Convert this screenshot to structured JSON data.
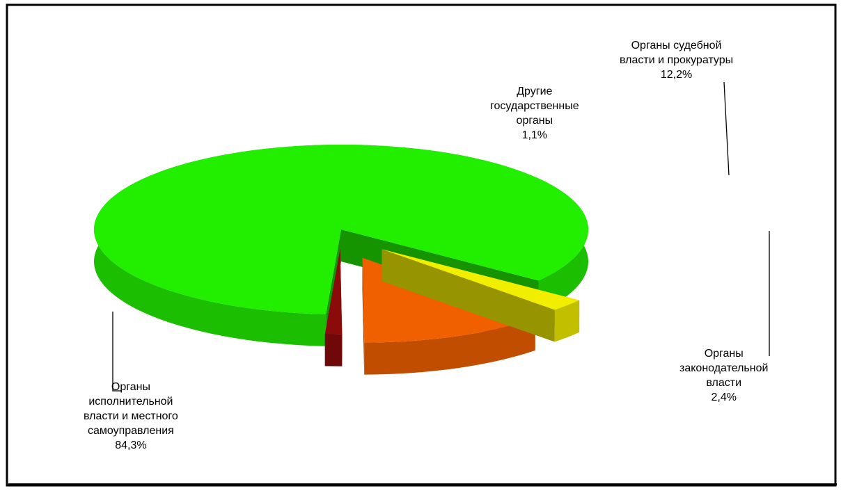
{
  "chart_data": {
    "type": "pie",
    "title": "",
    "style": "3d-exploded",
    "slices": [
      {
        "name": "Органы исполнительной власти и местного самоуправления",
        "value": 84.3,
        "value_label": "84,3%",
        "label_lines": [
          "Органы",
          "исполнительной",
          "власти и местного",
          "самоуправления"
        ],
        "color": "#22ee00"
      },
      {
        "name": "Другие государственные органы",
        "value": 1.1,
        "value_label": "1,1%",
        "label_lines": [
          "Другие",
          "государственные",
          "органы"
        ],
        "color": "#8b0a0a"
      },
      {
        "name": "Органы судебной власти и прокуратуры",
        "value": 12.2,
        "value_label": "12,2%",
        "label_lines": [
          "Органы судебной",
          "власти и прокуратуры"
        ],
        "color": "#f06000"
      },
      {
        "name": "Органы законодательной власти",
        "value": 2.4,
        "value_label": "2,4%",
        "label_lines": [
          "Органы",
          "законодательной",
          "власти"
        ],
        "color": "#f2ee00"
      }
    ],
    "legend": "none",
    "data_labels": "outside-with-leader-lines"
  }
}
